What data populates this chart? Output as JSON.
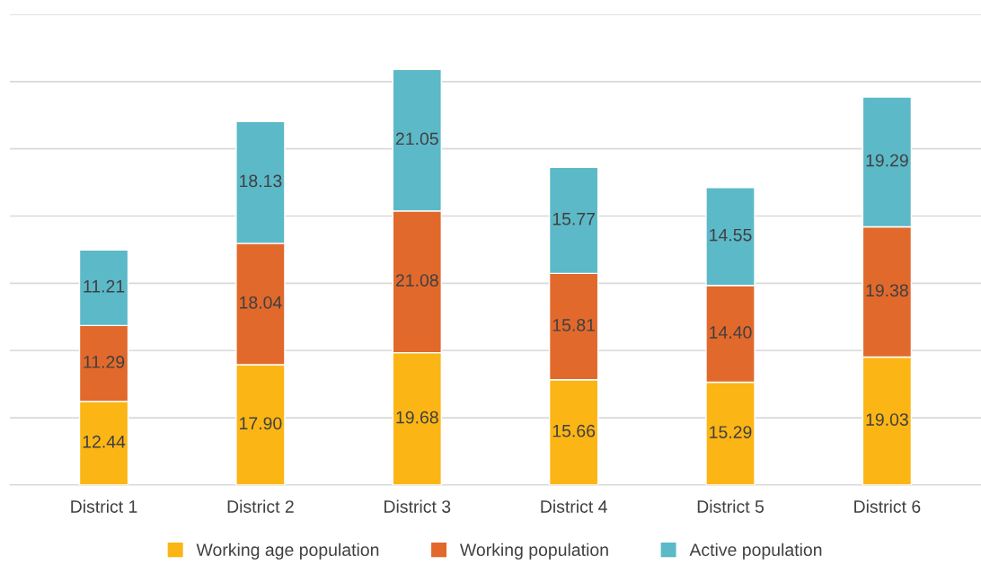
{
  "chart_data": {
    "type": "bar",
    "stacked": true,
    "categories": [
      "District 1",
      "District 2",
      "District 3",
      "District 4",
      "District 5",
      "District 6"
    ],
    "series": [
      {
        "name": "Working age population",
        "color": "#fbb515",
        "values": [
          12.44,
          17.9,
          19.68,
          15.66,
          15.29,
          19.03
        ],
        "value_labels": [
          "12.44",
          "17.90",
          "19.68",
          "15.66",
          "15.29",
          "19.03"
        ]
      },
      {
        "name": "Working population",
        "color": "#e2692c",
        "values": [
          11.29,
          18.04,
          21.08,
          15.81,
          14.4,
          19.38
        ],
        "value_labels": [
          "11.29",
          "18.04",
          "21.08",
          "15.81",
          "14.40",
          "19.38"
        ]
      },
      {
        "name": "Active population",
        "color": "#5cb9c8",
        "values": [
          11.21,
          18.13,
          21.05,
          15.77,
          14.55,
          19.29
        ],
        "value_labels": [
          "11.21",
          "18.13",
          "21.05",
          "15.77",
          "14.55",
          "19.29"
        ]
      }
    ],
    "ylim": [
      0,
      70
    ],
    "yticks": [
      {
        "value": 0,
        "label": null
      },
      {
        "value": 10,
        "label": null
      },
      {
        "value": 20,
        "label": null
      },
      {
        "value": 30,
        "label": null
      },
      {
        "value": 40,
        "label": null
      },
      {
        "value": 50,
        "label": null
      },
      {
        "value": 60,
        "label": null
      },
      {
        "value": 70,
        "label": null
      }
    ],
    "tick_labels": "x",
    "grid": "y",
    "legend": "bottom"
  }
}
